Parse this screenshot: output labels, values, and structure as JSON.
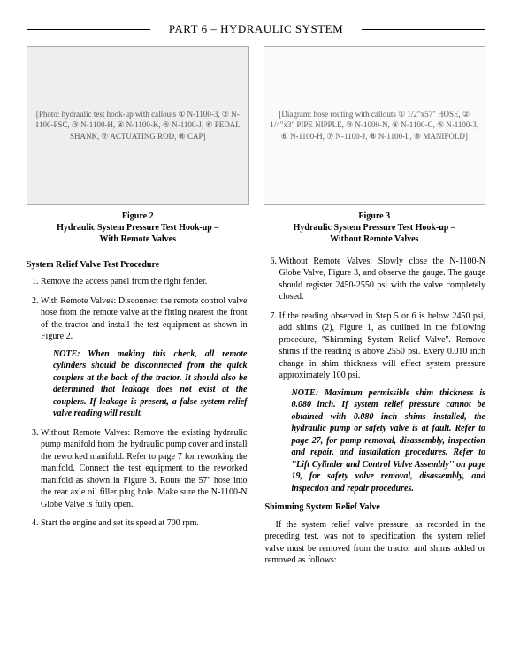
{
  "header": "PART 6 – HYDRAULIC SYSTEM",
  "fig2": {
    "placeholder": "[Photo: hydraulic test hook-up with callouts ① N-1100-3, ② N-1100-PSC, ③ N-1100-H, ④ N-1100-K, ⑤ N-1100-J, ⑥ PEDAL SHANK, ⑦ ACTUATING ROD, ⑧ CAP]",
    "title": "Figure 2",
    "caption": "Hydraulic System Pressure Test Hook-up –\nWith Remote Valves"
  },
  "fig3": {
    "placeholder": "[Diagram: hose routing with callouts ① 1/2\"x57\" HOSE, ② 1/4\"x3\" PIPE NIPPLE, ③ N-1000-N, ④ N-1100-C, ⑤ N-1100-3, ⑥ N-1100-H, ⑦ N-1100-J, ⑧ N-1100-L, ⑨ MANIFOLD]",
    "title": "Figure 3",
    "caption": "Hydraulic System Pressure Test Hook-up –\nWithout Remote Valves"
  },
  "left": {
    "section": "System Relief Valve Test Procedure",
    "li1": "Remove the access panel from the right fender.",
    "li2": "With Remote Valves: Disconnect the remote control valve hose from the remote valve at the fitting nearest the front of the tractor and install the test equipment as shown in Figure 2.",
    "note1": "NOTE: When making this check, all remote cylinders should be disconnected from the quick couplers at the back of the tractor. It should also be determined that leakage does not exist at the couplers. If leakage is present, a false system relief valve reading will result.",
    "li3": "Without Remote Valves: Remove the existing hydraulic pump manifold from the hydraulic pump cover and install the reworked manifold. Refer to page 7 for reworking the manifold. Connect the test equipment to the reworked manifold as shown in Figure 3. Route the 57'' hose into the rear axle oil filler plug hole. Make sure the N-1100-N Globe Valve is fully open.",
    "li4": "Start the engine and set its speed at 700 rpm."
  },
  "right": {
    "li6": "Without Remote Valves: Slowly close the N-1100-N Globe Valve, Figure 3, and observe the gauge. The gauge should register 2450-2550 psi with the valve completely closed.",
    "li7": "If the reading observed in Step 5 or 6 is below 2450 psi, add shims (2), Figure 1, as outlined in the following procedure, ''Shimming System Relief Valve''. Remove shims if the reading is above 2550 psi. Every 0.010 inch change in shim thickness will effect system pressure approximately 100 psi.",
    "note2": "NOTE: Maximum permissible shim thickness is 0.080 inch. If system relief pressure cannot be obtained with 0.080 inch shims installed, the hydraulic pump or safety valve is at fault. Refer to page 27, for pump removal, disassembly, inspection and repair, and installation procedures. Refer to ''Lift Cylinder and Control Valve Assembly'' on page 19, for safety valve removal, disassembly, and inspection and repair procedures.",
    "section2": "Shimming System Relief Valve",
    "p1": "If the system relief valve pressure, as recorded in the preceding test, was not to specification, the system relief valve must be removed from the tractor and shims added or removed as follows:"
  }
}
